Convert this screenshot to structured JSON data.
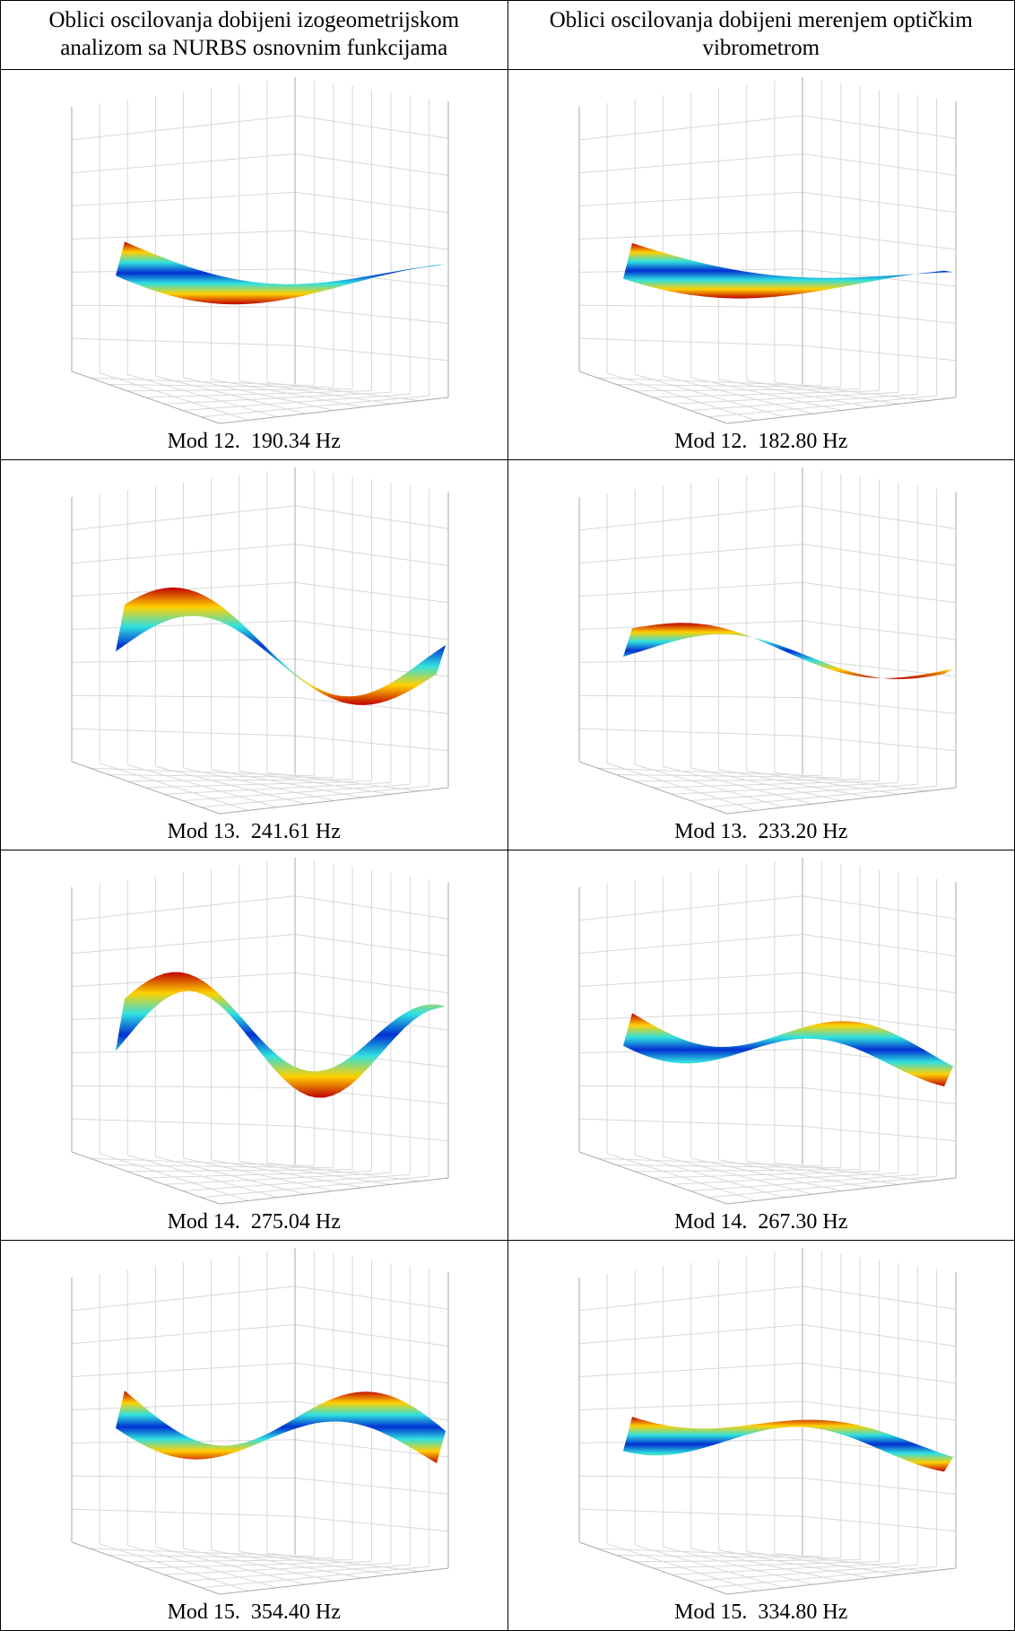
{
  "header": [
    "Oblici oscilovanja dobijeni izogeometrijskom analizom sa NURBS osnovnim funkcijama",
    "Oblici oscilovanja dobijeni merenjem optičkim vibrometrom"
  ],
  "rows": [
    [
      "Mod 12.  190.34 Hz",
      "Mod 12.  182.80 Hz"
    ],
    [
      "Mod 13.  241.61 Hz",
      "Mod 13.  233.20 Hz"
    ],
    [
      "Mod 14.  275.04 Hz",
      "Mod 14.  267.30 Hz"
    ],
    [
      "Mod 15.  354.40 Hz",
      "Mod 15.  334.80 Hz"
    ]
  ]
}
